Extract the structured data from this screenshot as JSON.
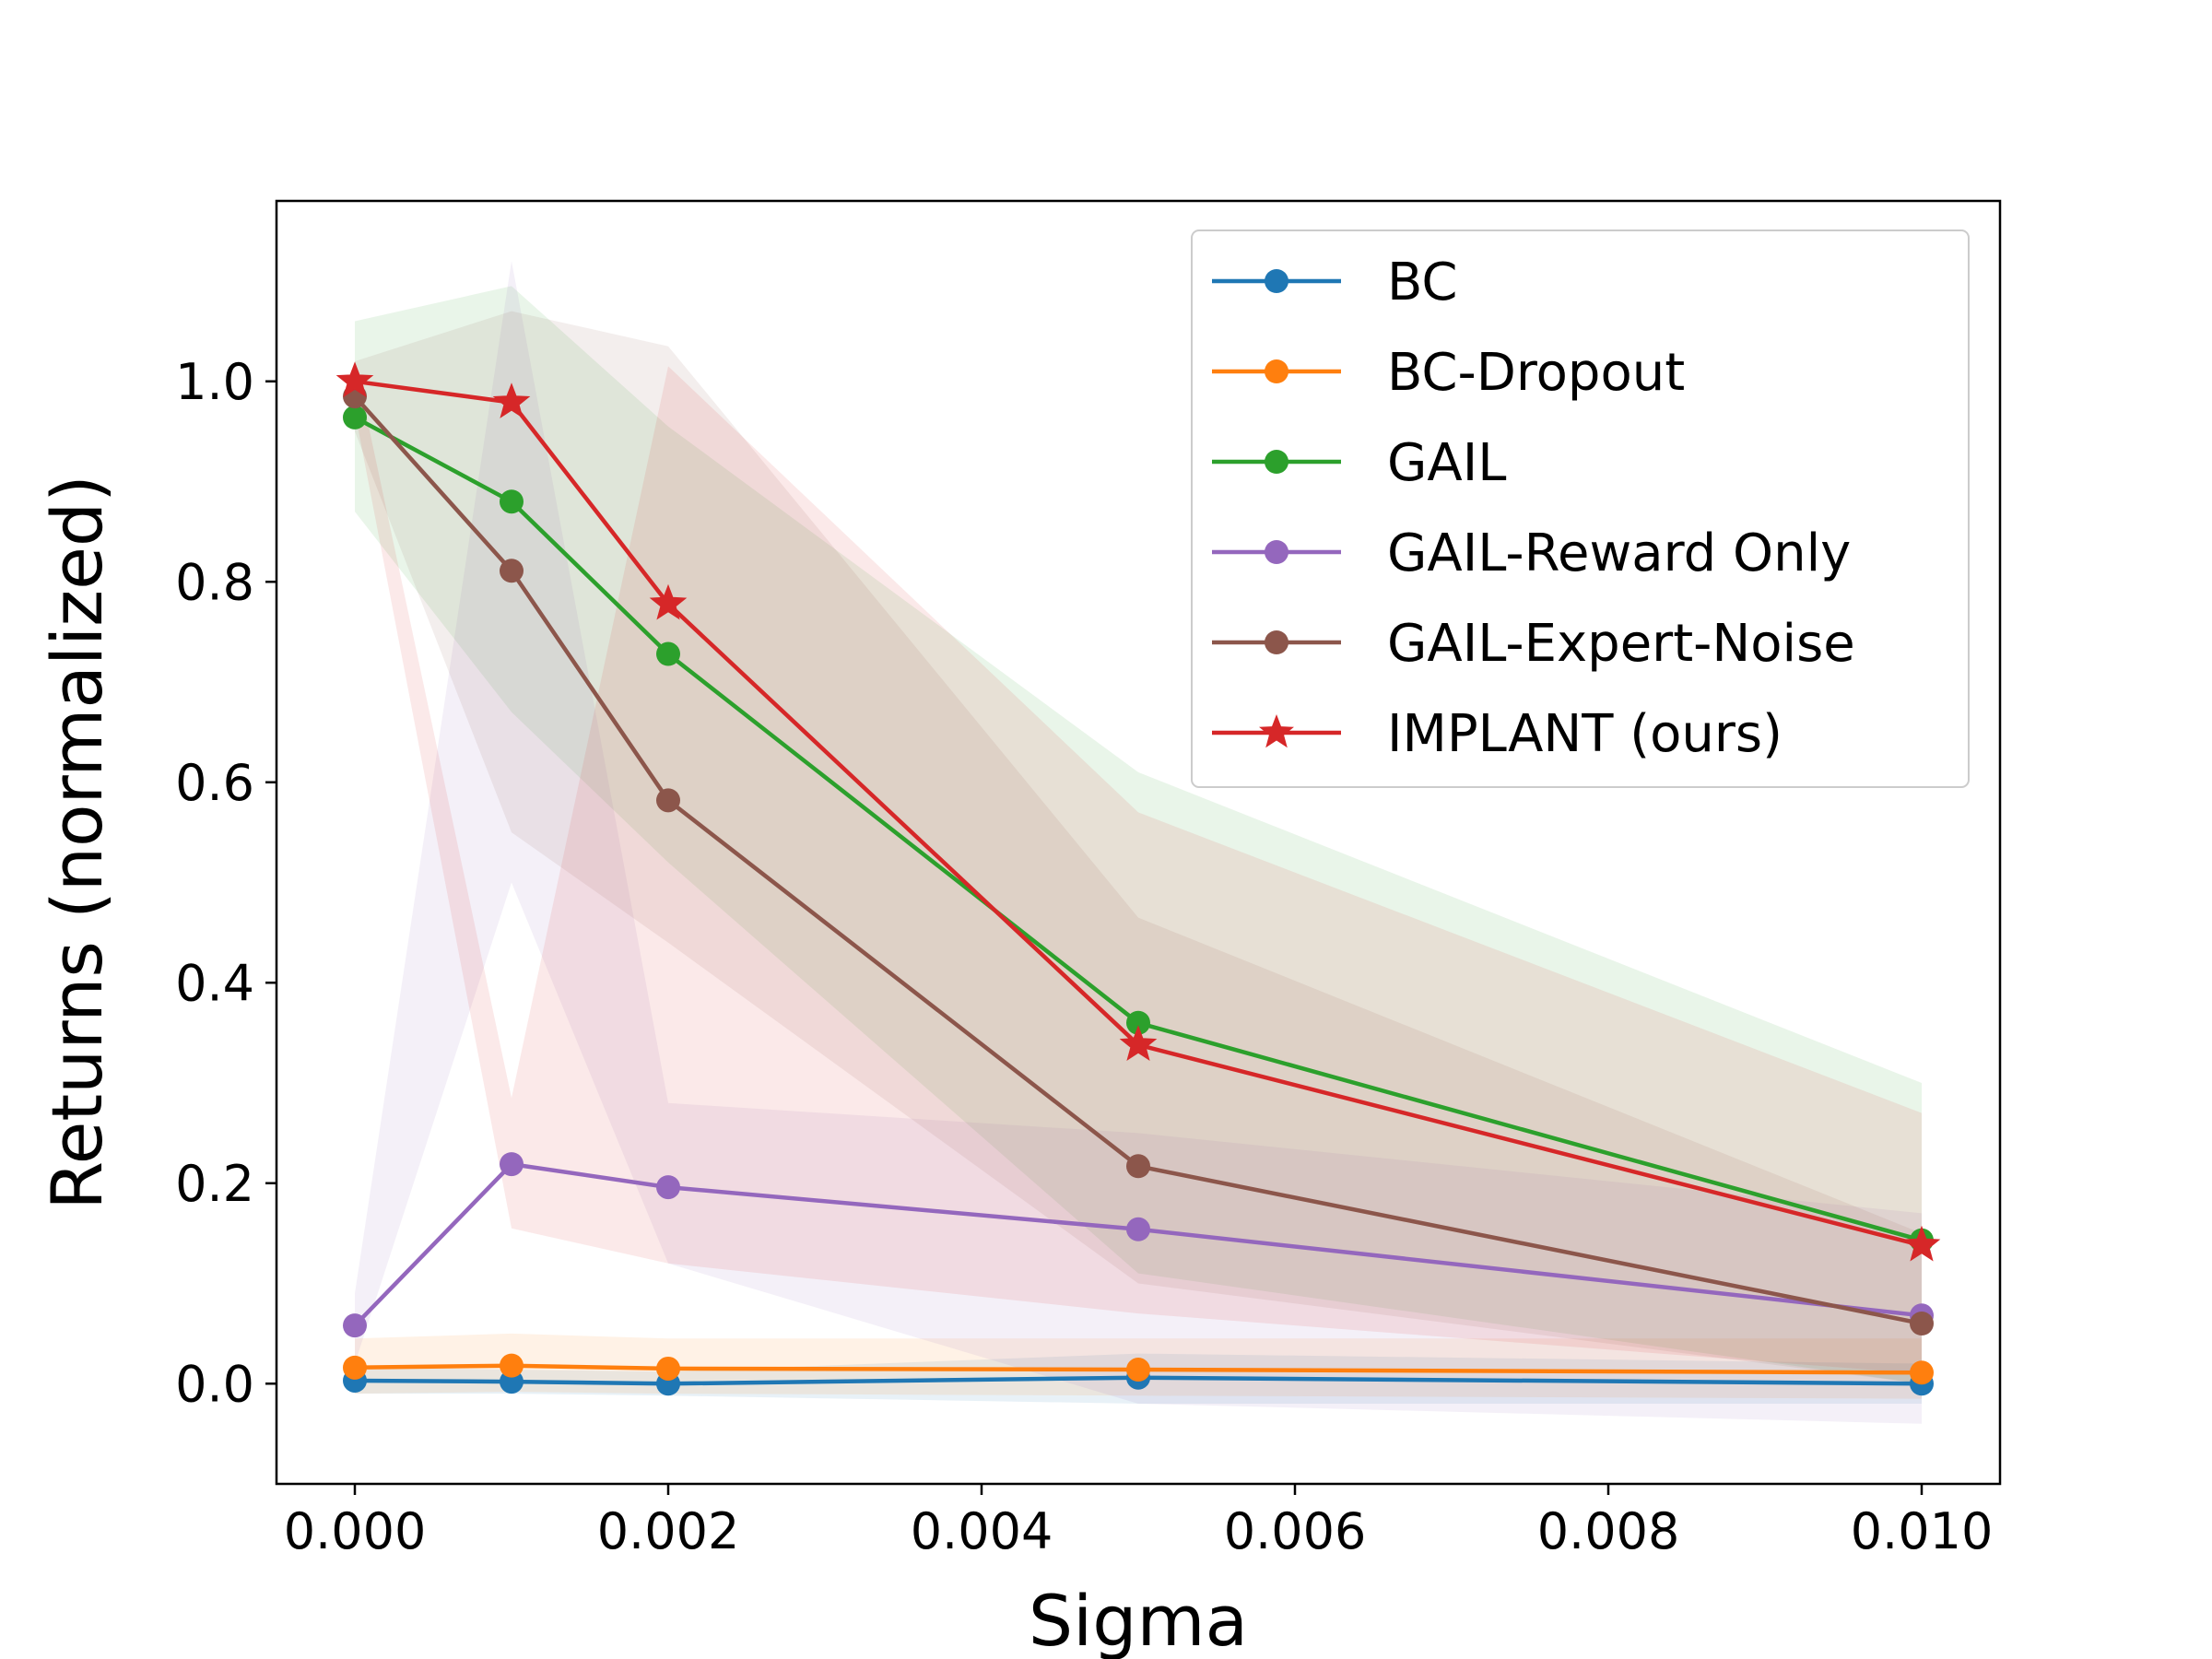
{
  "chart_data": {
    "type": "line",
    "title": "",
    "xlabel": "Sigma",
    "ylabel": "Returns (normalized)",
    "xlim": [
      -0.0005,
      0.0105
    ],
    "ylim": [
      -0.1,
      1.18
    ],
    "xticks": [
      0.0,
      0.002,
      0.004,
      0.006,
      0.008,
      0.01
    ],
    "xtick_labels": [
      "0.000",
      "0.002",
      "0.004",
      "0.006",
      "0.008",
      "0.010"
    ],
    "yticks": [
      0.0,
      0.2,
      0.4,
      0.6,
      0.8,
      1.0
    ],
    "ytick_labels": [
      "0.0",
      "0.2",
      "0.4",
      "0.6",
      "0.8",
      "1.0"
    ],
    "grid": false,
    "legend_position": "top-right",
    "x": [
      0.0,
      0.001,
      0.002,
      0.005,
      0.01
    ],
    "series": [
      {
        "name": "BC",
        "color": "#1f77b4",
        "marker": "circle",
        "values": [
          0.003,
          0.002,
          0.0,
          0.006,
          0.0
        ],
        "lower": [
          -0.01,
          -0.01,
          -0.012,
          -0.02,
          -0.02
        ],
        "upper": [
          0.016,
          0.014,
          0.012,
          0.03,
          0.02
        ]
      },
      {
        "name": "BC-Dropout",
        "color": "#ff7f0e",
        "marker": "circle",
        "values": [
          0.016,
          0.018,
          0.015,
          0.014,
          0.011
        ],
        "lower": [
          -0.01,
          -0.008,
          -0.01,
          -0.012,
          -0.015
        ],
        "upper": [
          0.045,
          0.05,
          0.045,
          0.045,
          0.045
        ]
      },
      {
        "name": "GAIL",
        "color": "#2ca02c",
        "marker": "circle",
        "values": [
          0.964,
          0.88,
          0.728,
          0.36,
          0.143
        ],
        "lower": [
          0.87,
          0.67,
          0.52,
          0.11,
          0.0
        ],
        "upper": [
          1.06,
          1.095,
          0.955,
          0.61,
          0.3
        ]
      },
      {
        "name": "GAIL-Reward Only",
        "color": "#9467bd",
        "marker": "circle",
        "values": [
          0.058,
          0.219,
          0.196,
          0.154,
          0.068
        ],
        "lower": [
          0.02,
          0.5,
          0.12,
          -0.02,
          -0.04
        ],
        "upper": [
          0.09,
          1.12,
          0.28,
          0.25,
          0.17
        ]
      },
      {
        "name": "GAIL-Expert-Noise",
        "color": "#8c564b",
        "marker": "circle",
        "values": [
          0.985,
          0.811,
          0.582,
          0.217,
          0.06
        ],
        "lower": [
          0.95,
          0.55,
          0.44,
          0.1,
          0.0
        ],
        "upper": [
          1.02,
          1.07,
          1.035,
          0.465,
          0.15
        ]
      },
      {
        "name": "IMPLANT (ours)",
        "color": "#d62728",
        "marker": "star",
        "values": [
          1.0,
          0.979,
          0.778,
          0.338,
          0.138
        ],
        "lower": [
          0.97,
          0.155,
          0.12,
          0.07,
          0.01
        ],
        "upper": [
          1.02,
          0.285,
          1.015,
          0.57,
          0.27
        ]
      }
    ]
  }
}
